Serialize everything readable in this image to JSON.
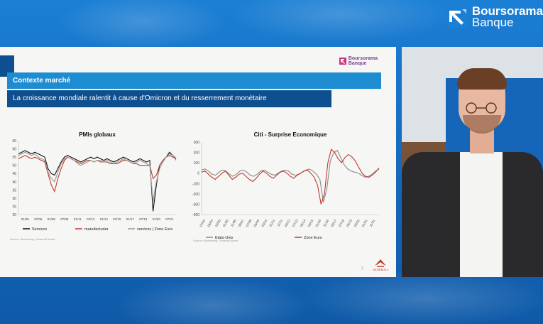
{
  "brand": {
    "name_line1": "Boursorama",
    "name_line2": "Banque",
    "accent_blue": "#1e8cd0",
    "dark_blue": "#0e4f8f",
    "brand_purple": "#7a3f93"
  },
  "slide": {
    "logo_line1": "Boursorama",
    "logo_line2": "Banque",
    "section": "Contexte marché",
    "subtitle": "La croissance mondiale ralentit à cause d'Omicron et du resserrement monétaire",
    "page_number": "2",
    "partner_logo": "GENERALI",
    "footnote_left": "Source: Bloomberg, Generali Invest",
    "footnote_right": "Source: Bloomberg, Generali Invest"
  },
  "chart_data": [
    {
      "type": "line",
      "title": "PMIs globaux",
      "ylim": [
        20,
        65
      ],
      "yticks": [
        "65",
        "60",
        "55",
        "50",
        "45",
        "40",
        "35",
        "30",
        "25",
        "20"
      ],
      "xticks": [
        "01/05",
        "07/06",
        "01/08",
        "07/09",
        "01/11",
        "07/12",
        "01/14",
        "07/15",
        "01/17",
        "07/18",
        "01/20",
        "07/21"
      ],
      "grid": false,
      "legend_position": "bottom",
      "series": [
        {
          "name": "Services",
          "color": "#111111",
          "values": [
            57,
            58,
            59,
            58,
            57,
            58,
            57,
            56,
            55,
            48,
            45,
            44,
            48,
            52,
            55,
            56,
            55,
            54,
            53,
            52,
            53,
            54,
            55,
            54,
            55,
            54,
            53,
            54,
            53,
            52,
            53,
            54,
            55,
            54,
            53,
            52,
            53,
            54,
            53,
            52,
            53,
            22,
            38,
            50,
            53,
            55,
            58,
            56,
            54
          ]
        },
        {
          "name": "manufacturier",
          "color": "#c0392b",
          "values": [
            54,
            55,
            56,
            55,
            54,
            55,
            54,
            53,
            52,
            45,
            38,
            34,
            42,
            48,
            53,
            55,
            54,
            53,
            52,
            51,
            52,
            53,
            53,
            52,
            53,
            52,
            52,
            52,
            51,
            51,
            51,
            52,
            53,
            53,
            52,
            51,
            51,
            50,
            50,
            50,
            50,
            42,
            44,
            50,
            53,
            55,
            56,
            55,
            54
          ]
        },
        {
          "name": "services | Zone Euro",
          "color": "#9a9a9a",
          "values": [
            56,
            57,
            58,
            57,
            56,
            57,
            55,
            54,
            53,
            46,
            42,
            40,
            46,
            51,
            54,
            55,
            54,
            53,
            51,
            50,
            51,
            52,
            53,
            52,
            53,
            53,
            52,
            53,
            52,
            51,
            52,
            53,
            54,
            53,
            52,
            51,
            52,
            53,
            52,
            51,
            50,
            28,
            40,
            48,
            52,
            55,
            57,
            56,
            53
          ]
        }
      ]
    },
    {
      "type": "line",
      "title": "Citi - Surprise Economique",
      "ylim": [
        -400,
        300
      ],
      "yticks": [
        "300",
        "200",
        "100",
        "0",
        "-100",
        "-200",
        "-300",
        "-400"
      ],
      "xticks": [
        "07/03",
        "05/04",
        "03/05",
        "01/06",
        "11/06",
        "09/07",
        "07/08",
        "05/09",
        "03/10",
        "01/11",
        "11/11",
        "09/12",
        "07/13",
        "05/14",
        "03/15",
        "01/16",
        "11/16",
        "09/17",
        "07/18",
        "05/19",
        "03/20",
        "01/21",
        "11/21"
      ],
      "grid": false,
      "legend_position": "bottom",
      "series": [
        {
          "name": "Etats-Unis",
          "color": "#8a8a8a",
          "values": [
            30,
            40,
            20,
            -10,
            -20,
            10,
            30,
            20,
            -10,
            -30,
            -10,
            20,
            30,
            10,
            -20,
            -30,
            -10,
            20,
            30,
            10,
            -10,
            -20,
            0,
            20,
            30,
            20,
            -10,
            -20,
            -10,
            10,
            30,
            40,
            20,
            -10,
            -60,
            -280,
            -150,
            120,
            200,
            220,
            150,
            80,
            40,
            20,
            10,
            0,
            -20,
            -40,
            -30,
            -10,
            20,
            40
          ]
        },
        {
          "name": "Zone Euro",
          "color": "#c0392b",
          "values": [
            10,
            20,
            -10,
            -40,
            -60,
            -30,
            0,
            20,
            -20,
            -60,
            -40,
            -10,
            0,
            -30,
            -60,
            -80,
            -50,
            -10,
            20,
            0,
            -30,
            -50,
            -20,
            10,
            20,
            0,
            -30,
            -50,
            -20,
            0,
            20,
            30,
            0,
            -40,
            -120,
            -300,
            -200,
            100,
            230,
            200,
            140,
            100,
            150,
            180,
            160,
            120,
            60,
            0,
            -30,
            -40,
            -20,
            10,
            50
          ]
        }
      ]
    }
  ]
}
